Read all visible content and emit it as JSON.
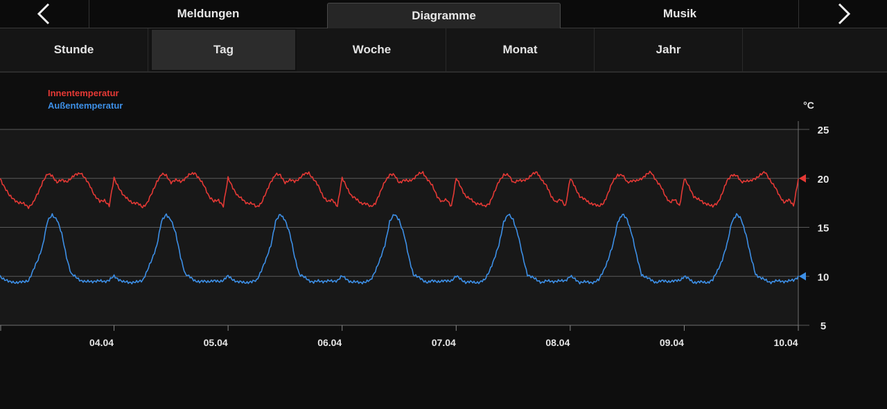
{
  "header": {
    "tabs": [
      {
        "label": "Meldungen",
        "active": false
      },
      {
        "label": "Diagramme",
        "active": true
      },
      {
        "label": "Musik",
        "active": false
      }
    ],
    "prev_icon": "chevron-left-icon",
    "next_icon": "chevron-right-icon"
  },
  "period_tabs": [
    {
      "label": "Stunde",
      "active": false
    },
    {
      "label": "Tag",
      "active": true
    },
    {
      "label": "Woche",
      "active": false
    },
    {
      "label": "Monat",
      "active": false
    },
    {
      "label": "Jahr",
      "active": false
    }
  ],
  "colors": {
    "inside": "#e53935",
    "outside": "#3d8fe6",
    "grid": "#5a5a5a"
  },
  "chart_data": {
    "type": "line",
    "unit": "°C",
    "ylim": [
      5,
      25
    ],
    "yticks": [
      5,
      10,
      15,
      20,
      25
    ],
    "grid": true,
    "legend_position": "top-left",
    "x_range": [
      "03.04",
      "10.04"
    ],
    "x_ticks": [
      "04.04",
      "05.04",
      "06.04",
      "07.04",
      "08.04",
      "09.04",
      "10.04"
    ],
    "current_markers": {
      "inside": 20,
      "outside": 10
    },
    "daily_profile_hours": [
      0,
      2,
      4,
      5,
      6,
      7,
      8,
      9,
      10,
      11,
      12,
      13,
      14,
      15,
      16,
      17,
      18,
      19,
      20,
      21,
      22,
      23,
      24
    ],
    "series": [
      {
        "name": "Innentemperatur",
        "daily_profile": [
          20.0,
          18.2,
          17.5,
          17.4,
          17.1,
          17.5,
          18.5,
          19.7,
          20.4,
          20.3,
          19.6,
          19.8,
          19.7,
          20.0,
          20.4,
          20.6,
          19.9,
          19.2,
          18.2,
          17.6,
          17.8,
          17.2,
          20.0
        ]
      },
      {
        "name": "Außentemperatur",
        "daily_profile": [
          10.0,
          9.4,
          9.4,
          9.4,
          9.6,
          10.6,
          11.7,
          13.2,
          15.6,
          16.3,
          15.8,
          14.3,
          12.0,
          10.2,
          9.9,
          9.6,
          9.4,
          9.5,
          9.5,
          9.5,
          9.5,
          9.6,
          10.0
        ]
      }
    ]
  }
}
